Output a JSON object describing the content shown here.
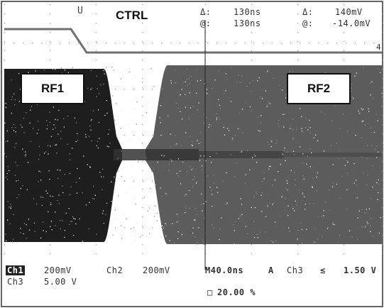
{
  "signals": {
    "ctrl": "CTRL",
    "rf1": "RF1",
    "rf2": "RF2"
  },
  "trigger_marker": "U",
  "cursor_readout": {
    "delta_symbol": "Δ:",
    "at_symbol": "@:",
    "time_delta": "130ns",
    "time_at": "130ns",
    "volt_delta": "140mV",
    "volt_at": "-14.0mV",
    "ref_marker": "4"
  },
  "channels": {
    "ch1_label": "Ch1",
    "ch1_scale": "200mV",
    "ch2_label": "Ch2",
    "ch2_scale": "200mV",
    "ch3_label": "Ch3",
    "ch3_scale": "5.00 V"
  },
  "timebase": {
    "horizontal": "M40.0ns",
    "acq_mode": "A",
    "trigger_source": "Ch3",
    "trigger_slope_icon": "falling-edge-icon",
    "trigger_slope_glyph": "≲",
    "trigger_level": "1.50 V",
    "trigger_position": "20.00 %",
    "trigger_position_icon": "trigger-position-icon"
  },
  "colors": {
    "rf1_trace": "#1e1e1e",
    "rf2_trace": "#5c5c5c",
    "ctrl_trace": "#707070",
    "grid": "#9a9a9a"
  }
}
